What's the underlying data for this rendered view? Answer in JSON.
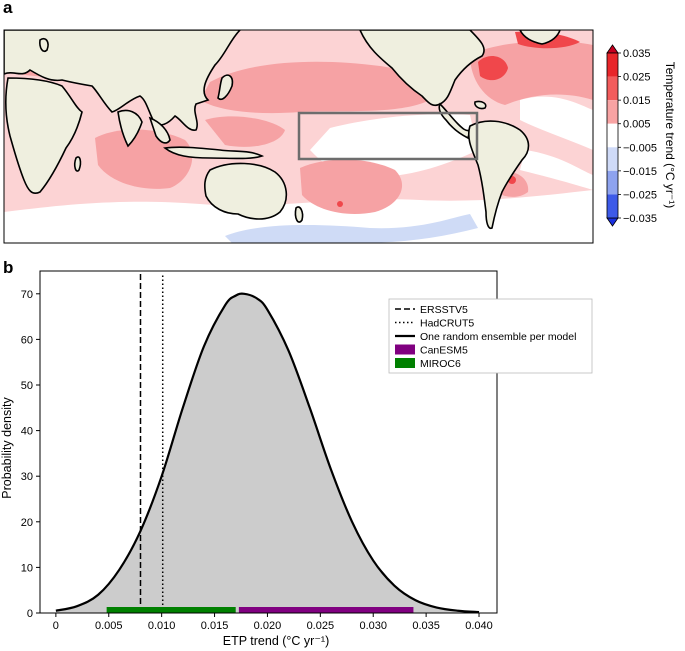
{
  "panel_a": {
    "label": "a",
    "colorbar": {
      "title": "Temperature trend (°C yr⁻¹)",
      "ticks": [
        "0.035",
        "0.025",
        "0.015",
        "0.005",
        "−0.005",
        "−0.015",
        "−0.025",
        "−0.035"
      ],
      "colors": [
        "#e8262a",
        "#f25c5c",
        "#f8a3a3",
        "#ffffff",
        "#cfdaf7",
        "#8ea3ef",
        "#3d5ae8"
      ],
      "extend_top_color": "#c8001f",
      "extend_bottom_color": "#1a2fe0"
    },
    "map_colors": {
      "land": "#efefdf",
      "ocean_strong": "#f0474b",
      "ocean_mid": "#f6a2a4",
      "ocean_light": "#fcd3d4",
      "ocean_cold": "#cfdbf6",
      "box": "#6d6d6d"
    }
  },
  "panel_b": {
    "label": "b",
    "chart_data": {
      "type": "area",
      "xlabel": "ETP trend (°C yr⁻¹)",
      "ylabel": "Probability density",
      "xlim": [
        -0.0015,
        0.0417
      ],
      "ylim": [
        0,
        75
      ],
      "x_ticks": [
        "0",
        "0.005",
        "0.010",
        "0.015",
        "0.020",
        "0.025",
        "0.030",
        "0.035",
        "0.040"
      ],
      "x_tick_values": [
        0,
        0.005,
        0.01,
        0.015,
        0.02,
        0.025,
        0.03,
        0.035,
        0.04
      ],
      "y_ticks": [
        "0",
        "10",
        "20",
        "30",
        "40",
        "50",
        "60",
        "70"
      ],
      "y_tick_values": [
        0,
        10,
        20,
        30,
        40,
        50,
        60,
        70
      ],
      "density_curve": {
        "name": "One random ensemble per model",
        "x": [
          0,
          0.002,
          0.004,
          0.006,
          0.008,
          0.01,
          0.012,
          0.014,
          0.016,
          0.017,
          0.0178,
          0.019,
          0.02,
          0.022,
          0.024,
          0.026,
          0.028,
          0.03,
          0.032,
          0.034,
          0.036,
          0.038,
          0.04
        ],
        "y": [
          0.5,
          1.5,
          4.0,
          9.5,
          18.0,
          30.0,
          45.0,
          58.5,
          67.5,
          69.6,
          70.0,
          69.0,
          66.5,
          57.5,
          45.0,
          31.5,
          20.0,
          11.5,
          6.0,
          2.8,
          1.2,
          0.5,
          0.2
        ]
      },
      "vertical_lines": [
        {
          "name": "ERSSTV5",
          "x": 0.008,
          "style": "dashed"
        },
        {
          "name": "HadCRUT5",
          "x": 0.0101,
          "style": "dotted"
        }
      ],
      "ranges": [
        {
          "name": "CanESM5",
          "x0": 0.0173,
          "x1": 0.0338,
          "color": "#800080"
        },
        {
          "name": "MIROC6",
          "x0": 0.0048,
          "x1": 0.017,
          "color": "#008000"
        }
      ],
      "fill_color": "#cccccc",
      "legend_position": "top-right",
      "legend": [
        "ERSSTV5",
        "HadCRUT5",
        "One random ensemble per model",
        "CanESM5",
        "MIROC6"
      ]
    }
  }
}
